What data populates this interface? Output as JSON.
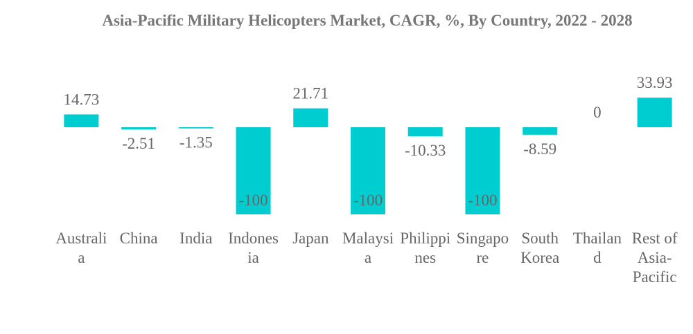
{
  "chart_data": {
    "type": "bar",
    "title": "Asia-Pacific Military Helicopters Market, CAGR, %, By Country, 2022 - 2028",
    "categories": [
      "Australia",
      "China",
      "India",
      "Indonesia",
      "Japan",
      "Malaysia",
      "Philippines",
      "Singapore",
      "South Korea",
      "Thailand",
      "Rest of Asia-Pacific"
    ],
    "values": [
      14.73,
      -2.51,
      -1.35,
      -100,
      21.71,
      -100,
      -10.33,
      -100,
      -8.59,
      0,
      33.93
    ],
    "color": "#00cdd0",
    "ylim": [
      -100,
      40
    ]
  }
}
